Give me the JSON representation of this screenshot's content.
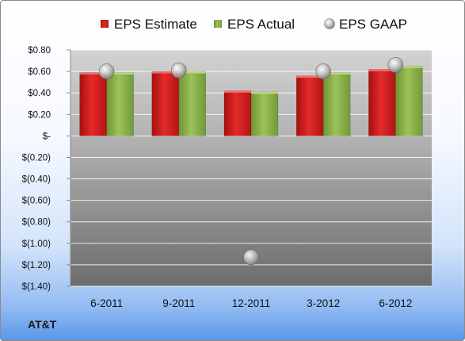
{
  "company": "AT&T",
  "chart_data": {
    "type": "bar",
    "categories": [
      "6-2011",
      "9-2011",
      "12-2011",
      "3-2012",
      "6-2012"
    ],
    "series": [
      {
        "name": "EPS Estimate",
        "kind": "bar",
        "color": "#d91e1e",
        "values": [
          0.59,
          0.6,
          0.42,
          0.56,
          0.62
        ]
      },
      {
        "name": "EPS Actual",
        "kind": "bar",
        "color": "#8ab04a",
        "values": [
          0.59,
          0.6,
          0.41,
          0.59,
          0.65
        ]
      },
      {
        "name": "EPS GAAP",
        "kind": "marker",
        "color": "#b8b8b8",
        "values": [
          0.6,
          0.61,
          -1.13,
          0.6,
          0.66
        ]
      }
    ],
    "yticks": [
      "$0.80",
      "$0.60",
      "$0.40",
      "$0.20",
      "$-",
      "$(0.20)",
      "$(0.40)",
      "$(0.60)",
      "$(0.80)",
      "$(1.00)",
      "$(1.20)",
      "$(1.40)"
    ],
    "ylim": [
      -1.4,
      0.8
    ],
    "grid": true,
    "legend_position": "top"
  }
}
